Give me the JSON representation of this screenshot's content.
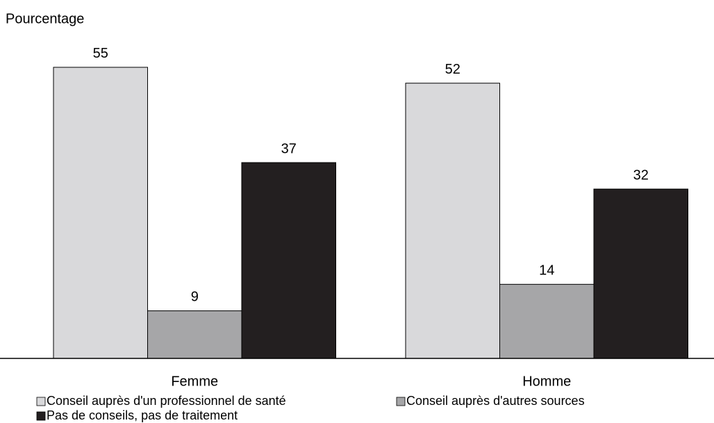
{
  "chart_data": {
    "type": "bar",
    "title": "Pourcentage",
    "categories": [
      "Femme",
      "Homme"
    ],
    "series": [
      {
        "name": "Conseil auprès d'un professionnel de santé",
        "color": "#d9d9db",
        "values": [
          55,
          52
        ]
      },
      {
        "name": "Conseil auprès d'autres sources",
        "color": "#a6a6a8",
        "values": [
          9,
          14
        ]
      },
      {
        "name": "Pas de conseils, pas de traitement",
        "color": "#231f20",
        "values": [
          37,
          32
        ]
      }
    ]
  }
}
